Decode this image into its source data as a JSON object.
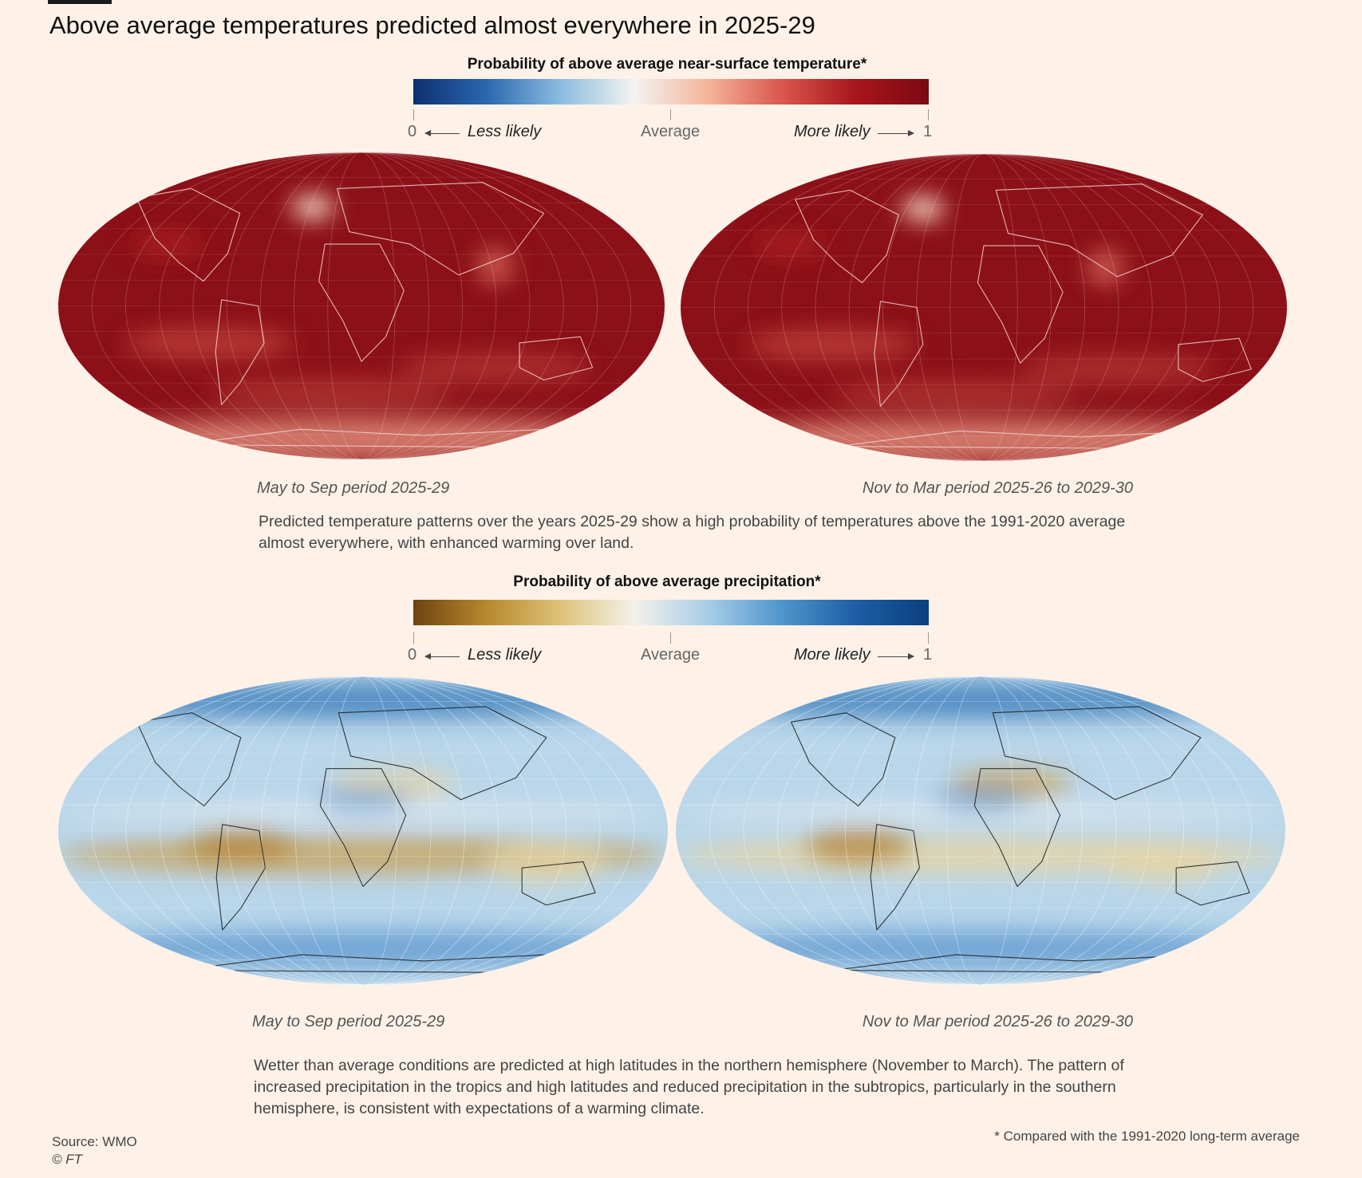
{
  "title": "Above average temperatures predicted almost everywhere in 2025-29",
  "temperature": {
    "legend_title": "Probability of above average near-surface temperature*",
    "scale_min": "0",
    "scale_max": "1",
    "less_label": "Less likely",
    "mid_label": "Average",
    "more_label": "More likely",
    "colors": [
      "#0d2f6e",
      "#2a68b0",
      "#8bbce0",
      "#f4f3f1",
      "#f5b49b",
      "#d9574c",
      "#a8161c",
      "#7a0a12"
    ],
    "map_base_color": "#8c1018",
    "map_border_color": "#f2d4d0",
    "left_period": "May to Sep period 2025-29",
    "right_period": "Nov to Mar period 2025-26 to 2029-30",
    "description": "Predicted temperature patterns over the years 2025-29 show a high probability of temperatures above the 1991-2020 average almost everywhere, with enhanced warming over land."
  },
  "precipitation": {
    "legend_title": "Probability of above average precipitation*",
    "scale_min": "0",
    "scale_max": "1",
    "less_label": "Less likely",
    "mid_label": "Average",
    "more_label": "More likely",
    "colors": [
      "#6e4310",
      "#b8892e",
      "#ddc278",
      "#f4f1ea",
      "#a8cde8",
      "#4f96cd",
      "#1d5ea5",
      "#0b3f7e"
    ],
    "map_base_color": "#b9d6ea",
    "map_border_color": "#1a1a1a",
    "left_period": "May to Sep period 2025-29",
    "right_period": "Nov to Mar period 2025-26 to 2029-30",
    "description": "Wetter than average conditions are predicted at high latitudes in the northern hemisphere (November to March). The pattern of increased precipitation in the tropics and high latitudes and reduced precipitation in the subtropics, particularly in the southern hemisphere, is consistent with expectations of a warming climate."
  },
  "source": "Source: WMO",
  "credit": "© FT",
  "footnote": "* Compared with the 1991-2020 long-term average"
}
